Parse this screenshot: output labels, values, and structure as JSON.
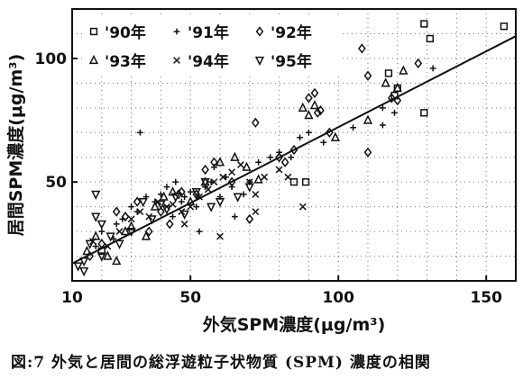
{
  "caption": "図:7 外気と居間の総浮遊粒子状物質 (SPM) 濃度の相関",
  "chart_data": {
    "type": "scatter",
    "title": "",
    "xlabel": "外気SPM濃度(μg/m³)",
    "ylabel": "居間SPM濃度(μg/m³)",
    "xlim": [
      10,
      160
    ],
    "ylim": [
      10,
      120
    ],
    "xticks": [
      "10",
      "50",
      "100",
      "150"
    ],
    "yticks": [
      "50",
      "100"
    ],
    "grid": "dotted",
    "legend_position": "top-left",
    "trendline": {
      "x": [
        10,
        160
      ],
      "y": [
        17,
        109
      ]
    },
    "series": [
      {
        "name": "'90年",
        "marker": "square",
        "points": [
          [
            129,
            114
          ],
          [
            131,
            108
          ],
          [
            156,
            113
          ],
          [
            117,
            94
          ],
          [
            119,
            85
          ],
          [
            120,
            88
          ],
          [
            129,
            78
          ],
          [
            89,
            50
          ],
          [
            85,
            50
          ],
          [
            20,
            22
          ]
        ]
      },
      {
        "name": "'91年",
        "marker": "plus",
        "points": [
          [
            18,
            24
          ],
          [
            20,
            30
          ],
          [
            24,
            27
          ],
          [
            25,
            33
          ],
          [
            27,
            35
          ],
          [
            30,
            40
          ],
          [
            32,
            38
          ],
          [
            35,
            44
          ],
          [
            38,
            42
          ],
          [
            40,
            45
          ],
          [
            42,
            48
          ],
          [
            44,
            36
          ],
          [
            45,
            50
          ],
          [
            47,
            42
          ],
          [
            50,
            46
          ],
          [
            52,
            40
          ],
          [
            55,
            48
          ],
          [
            57,
            50
          ],
          [
            58,
            56
          ],
          [
            60,
            44
          ],
          [
            62,
            52
          ],
          [
            64,
            48
          ],
          [
            65,
            36
          ],
          [
            68,
            45
          ],
          [
            70,
            50
          ],
          [
            73,
            58
          ],
          [
            77,
            60
          ],
          [
            80,
            62
          ],
          [
            84,
            60
          ],
          [
            87,
            68
          ],
          [
            90,
            70
          ],
          [
            95,
            66
          ],
          [
            105,
            72
          ],
          [
            115,
            80
          ],
          [
            119,
            78
          ],
          [
            115,
            73
          ],
          [
            132,
            96
          ],
          [
            33,
            70
          ],
          [
            48,
            44
          ],
          [
            53,
            30
          ]
        ]
      },
      {
        "name": "'92年",
        "marker": "diamond",
        "points": [
          [
            16,
            20
          ],
          [
            20,
            25
          ],
          [
            25,
            38
          ],
          [
            28,
            36
          ],
          [
            32,
            42
          ],
          [
            36,
            30
          ],
          [
            40,
            38
          ],
          [
            43,
            33
          ],
          [
            47,
            46
          ],
          [
            52,
            45
          ],
          [
            55,
            55
          ],
          [
            58,
            58
          ],
          [
            64,
            50
          ],
          [
            72,
            74
          ],
          [
            80,
            60
          ],
          [
            82,
            58
          ],
          [
            85,
            63
          ],
          [
            90,
            84
          ],
          [
            92,
            86
          ],
          [
            93,
            78
          ],
          [
            94,
            79
          ],
          [
            97,
            70
          ],
          [
            108,
            104
          ],
          [
            110,
            93
          ],
          [
            118,
            84
          ],
          [
            120,
            83
          ],
          [
            127,
            98
          ],
          [
            110,
            62
          ],
          [
            70,
            35
          ],
          [
            46,
            45
          ]
        ]
      },
      {
        "name": "'93年",
        "marker": "triangle",
        "points": [
          [
            15,
            22
          ],
          [
            18,
            28
          ],
          [
            22,
            20
          ],
          [
            25,
            18
          ],
          [
            28,
            30
          ],
          [
            30,
            32
          ],
          [
            35,
            28
          ],
          [
            38,
            40
          ],
          [
            41,
            44
          ],
          [
            44,
            46
          ],
          [
            50,
            42
          ],
          [
            55,
            50
          ],
          [
            60,
            58
          ],
          [
            65,
            60
          ],
          [
            69,
            56
          ],
          [
            73,
            51
          ],
          [
            88,
            80
          ],
          [
            90,
            77
          ],
          [
            92,
            81
          ],
          [
            99,
            68
          ],
          [
            110,
            75
          ],
          [
            116,
            90
          ],
          [
            120,
            88
          ],
          [
            122,
            95
          ]
        ]
      },
      {
        "name": "'94年",
        "marker": "x",
        "points": [
          [
            17,
            26
          ],
          [
            22,
            24
          ],
          [
            26,
            30
          ],
          [
            30,
            35
          ],
          [
            33,
            38
          ],
          [
            36,
            36
          ],
          [
            39,
            42
          ],
          [
            42,
            40
          ],
          [
            44,
            41
          ],
          [
            47,
            38
          ],
          [
            50,
            40
          ],
          [
            53,
            44
          ],
          [
            56,
            47
          ],
          [
            58,
            50
          ],
          [
            61,
            52
          ],
          [
            64,
            54
          ],
          [
            67,
            57
          ],
          [
            70,
            50
          ],
          [
            72,
            45
          ],
          [
            75,
            52
          ],
          [
            80,
            55
          ],
          [
            83,
            52
          ],
          [
            88,
            40
          ],
          [
            48,
            33
          ],
          [
            60,
            28
          ],
          [
            72,
            38
          ]
        ]
      },
      {
        "name": "'95年",
        "marker": "triangle-down",
        "points": [
          [
            12,
            16
          ],
          [
            14,
            18
          ],
          [
            16,
            25
          ],
          [
            18,
            36
          ],
          [
            20,
            33
          ],
          [
            23,
            28
          ],
          [
            26,
            25
          ],
          [
            30,
            30
          ],
          [
            34,
            42
          ],
          [
            37,
            35
          ],
          [
            40,
            41
          ],
          [
            42,
            39
          ],
          [
            45,
            44
          ],
          [
            48,
            37
          ],
          [
            52,
            46
          ],
          [
            55,
            50
          ],
          [
            57,
            40
          ],
          [
            60,
            42
          ],
          [
            66,
            44
          ],
          [
            70,
            48
          ],
          [
            18,
            45
          ],
          [
            20,
            20
          ],
          [
            14,
            14
          ]
        ]
      }
    ]
  }
}
